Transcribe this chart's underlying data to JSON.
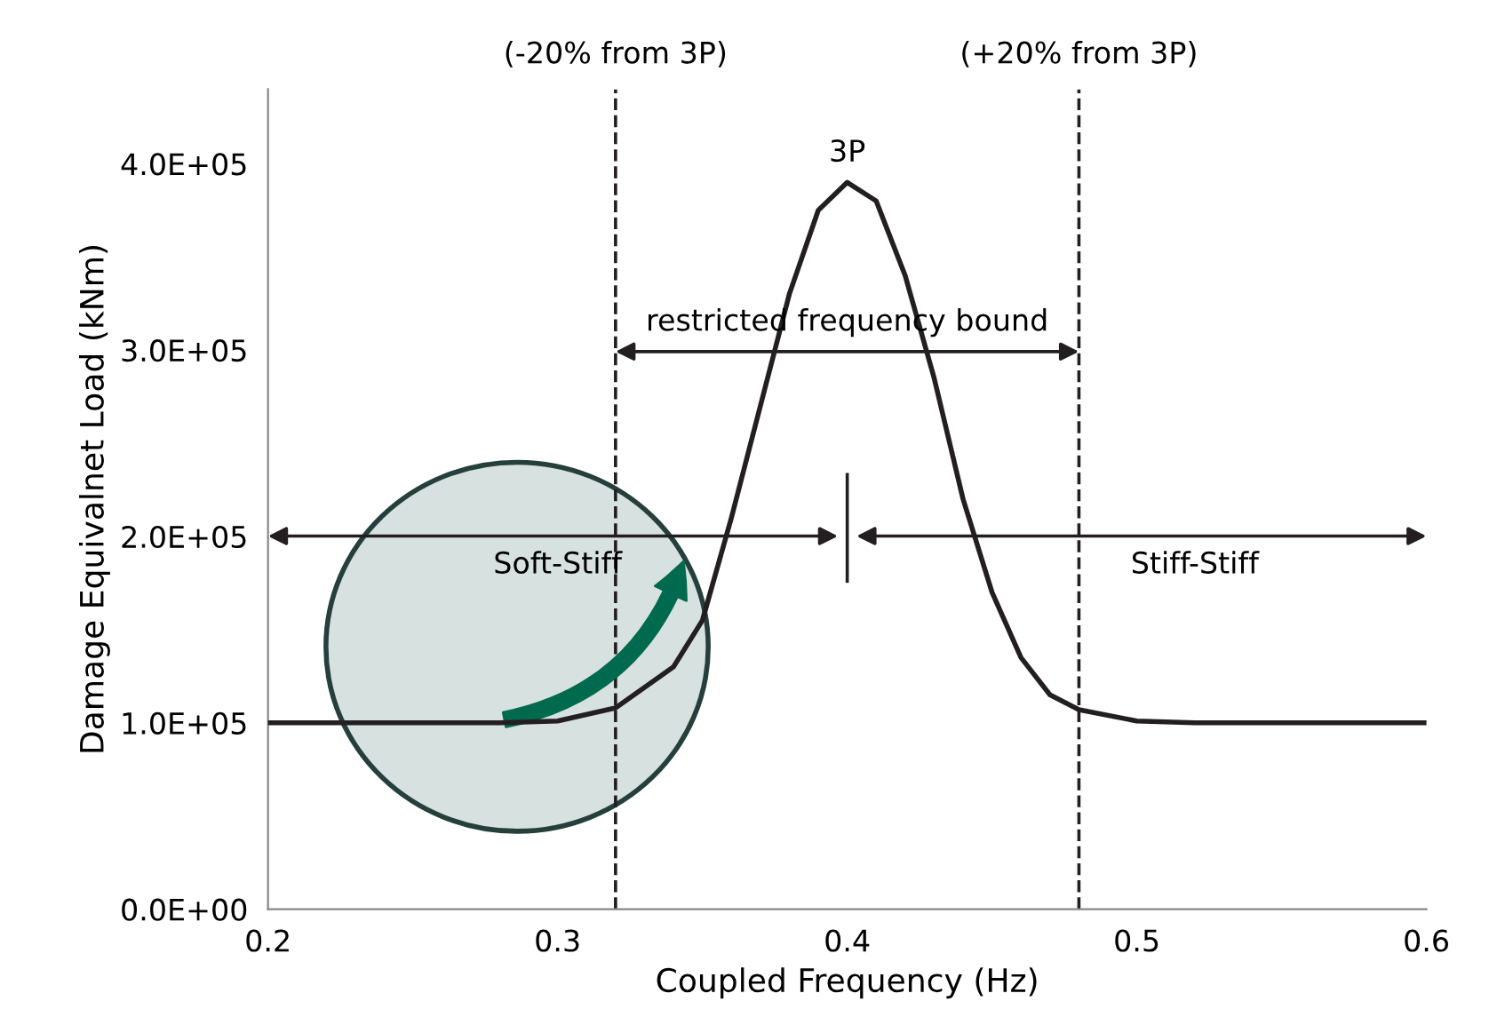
{
  "chart_data": {
    "type": "line",
    "xlabel": "Coupled Frequency (Hz)",
    "ylabel": "Damage Equivalnet Load (kNm)",
    "x": [
      0.2,
      0.28,
      0.3,
      0.32,
      0.34,
      0.35,
      0.36,
      0.37,
      0.38,
      0.39,
      0.4,
      0.41,
      0.42,
      0.43,
      0.44,
      0.45,
      0.46,
      0.47,
      0.48,
      0.5,
      0.52,
      0.6
    ],
    "series": [
      {
        "color": "#231f20",
        "values": [
          100000,
          100000,
          101000,
          108000,
          130000,
          155000,
          210000,
          270000,
          330000,
          375000,
          390000,
          380000,
          340000,
          285000,
          220000,
          170000,
          135000,
          115000,
          107000,
          101000,
          100000,
          100000
        ]
      }
    ],
    "xlim": [
      0.2,
      0.6
    ],
    "xticks": [
      0.2,
      0.3,
      0.4,
      0.5,
      0.6
    ],
    "ylim": [
      0,
      440000
    ],
    "yticks": [
      {
        "value": 0,
        "label": "0.0E+00"
      },
      {
        "value": 100000,
        "label": "1.0E+05"
      },
      {
        "value": 200000,
        "label": "2.0E+05"
      },
      {
        "value": 300000,
        "label": "3.0E+05"
      },
      {
        "value": 400000,
        "label": "4.0E+05"
      }
    ],
    "ref_lines": [
      {
        "axis": "x",
        "value": 0.32,
        "label": "(-20% from 3P)",
        "line_style": "dashed",
        "color": "#231f20"
      },
      {
        "axis": "x",
        "value": 0.48,
        "label": "(+20% from 3P)",
        "line_style": "dashed",
        "color": "#231f20"
      }
    ],
    "annotations": [
      {
        "text": "3P",
        "x": 0.4,
        "y": 390000
      },
      "restricted frequency bound",
      "Soft-Stiff",
      "Stiff-Stiff"
    ],
    "grid": false,
    "marker": "none",
    "line_style": "solid"
  }
}
